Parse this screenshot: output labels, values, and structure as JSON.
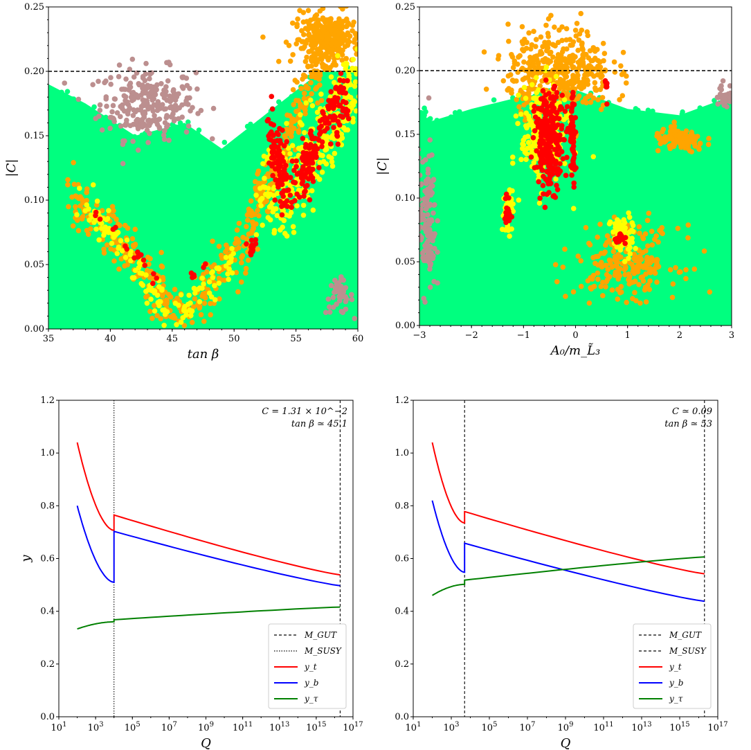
{
  "colors": {
    "green": "#00ff7f",
    "orange": "#ffa500",
    "yellow": "#ffff00",
    "red": "#ff0000",
    "rosybrown": "#bc8f8f",
    "yt": "#ff0000",
    "yb": "#0000ff",
    "ytau": "#008000"
  },
  "chart_data": [
    {
      "type": "scatter",
      "xlabel": "tan β",
      "ylabel": "|C|",
      "xlim": [
        35,
        60
      ],
      "ylim": [
        0.0,
        0.25
      ],
      "xticks": [
        "35",
        "40",
        "45",
        "50",
        "55",
        "60"
      ],
      "yticks": [
        "0.00",
        "0.05",
        "0.10",
        "0.15",
        "0.20",
        "0.25"
      ],
      "hline": 0.2,
      "grid": false,
      "regions": [
        {
          "color": "green",
          "desc": "background band",
          "polygon": [
            [
              35,
              0
            ],
            [
              60,
              0
            ],
            [
              60,
              0.2
            ],
            [
              57,
              0.2
            ],
            [
              53,
              0.17
            ],
            [
              49,
              0.14
            ],
            [
              46,
              0.16
            ],
            [
              42,
              0.15
            ],
            [
              38,
              0.175
            ],
            [
              35,
              0.19
            ]
          ]
        },
        {
          "color": "rosybrown",
          "cluster": {
            "x": 43,
            "y": 0.175,
            "sx": 3.5,
            "sy": 0.025,
            "n": 260
          }
        },
        {
          "color": "rosybrown",
          "cluster": {
            "x": 58.5,
            "y": 0.025,
            "sx": 1.0,
            "sy": 0.012,
            "n": 40
          }
        },
        {
          "color": "orange",
          "band": [
            [
              36.5,
              0.105
            ],
            [
              40,
              0.075
            ],
            [
              44,
              0.03
            ],
            [
              45,
              0.01
            ],
            [
              47,
              0.02
            ],
            [
              50,
              0.055
            ],
            [
              53,
              0.12
            ],
            [
              56,
              0.19
            ],
            [
              59,
              0.24
            ]
          ],
          "width": 0.018,
          "n": 520
        },
        {
          "color": "orange",
          "cluster": {
            "x": 57.5,
            "y": 0.225,
            "sx": 2.5,
            "sy": 0.018,
            "n": 260
          }
        },
        {
          "color": "yellow",
          "band": [
            [
              37.5,
              0.1
            ],
            [
              40,
              0.075
            ],
            [
              43,
              0.04
            ],
            [
              44.5,
              0.015
            ]
          ],
          "width": 0.01,
          "n": 90
        },
        {
          "color": "yellow",
          "band": [
            [
              45.5,
              0.01
            ],
            [
              48,
              0.035
            ],
            [
              50,
              0.055
            ]
          ],
          "width": 0.01,
          "n": 50
        },
        {
          "color": "yellow",
          "band": [
            [
              52,
              0.11
            ],
            [
              54,
              0.1
            ],
            [
              56,
              0.13
            ],
            [
              58,
              0.16
            ],
            [
              60,
              0.19
            ]
          ],
          "width": 0.03,
          "n": 340
        },
        {
          "color": "red",
          "band": [
            [
              38.5,
              0.095
            ],
            [
              41,
              0.07
            ],
            [
              43,
              0.05
            ],
            [
              44.5,
              0.02
            ]
          ],
          "width": 0.005,
          "n": 18
        },
        {
          "color": "red",
          "band": [
            [
              46.5,
              0.04
            ],
            [
              48,
              0.05
            ]
          ],
          "width": 0.004,
          "n": 6
        },
        {
          "color": "red",
          "cluster": {
            "x": 51.5,
            "y": 0.065,
            "sx": 0.4,
            "sy": 0.005,
            "n": 14
          }
        },
        {
          "color": "red",
          "band": [
            [
              53,
              0.15
            ],
            [
              54,
              0.11
            ],
            [
              55.5,
              0.12
            ],
            [
              57,
              0.15
            ],
            [
              59,
              0.185
            ]
          ],
          "width": 0.02,
          "n": 260
        }
      ]
    },
    {
      "type": "scatter",
      "xlabel": "A₀/m_L̃₃",
      "ylabel": "|C|",
      "xlim": [
        -3,
        3
      ],
      "ylim": [
        0.0,
        0.25
      ],
      "xticks": [
        "−3",
        "−2",
        "−1",
        "0",
        "1",
        "2",
        "3"
      ],
      "yticks": [
        "0.00",
        "0.05",
        "0.10",
        "0.15",
        "0.20",
        "0.25"
      ],
      "hline": 0.2,
      "grid": false,
      "regions": [
        {
          "color": "green",
          "desc": "background band",
          "polygon": [
            [
              -3,
              0
            ],
            [
              3,
              0
            ],
            [
              3,
              0.18
            ],
            [
              2,
              0.165
            ],
            [
              1,
              0.17
            ],
            [
              0,
              0.185
            ],
            [
              -1,
              0.18
            ],
            [
              -2,
              0.17
            ],
            [
              -2.8,
              0.16
            ],
            [
              -3,
              0.17
            ]
          ]
        },
        {
          "color": "rosybrown",
          "cluster": {
            "x": -2.85,
            "y": 0.08,
            "sx": 0.15,
            "sy": 0.05,
            "n": 120
          }
        },
        {
          "color": "rosybrown",
          "cluster": {
            "x": 2.85,
            "y": 0.18,
            "sx": 0.15,
            "sy": 0.01,
            "n": 30
          }
        },
        {
          "color": "orange",
          "cluster": {
            "x": -0.3,
            "y": 0.2,
            "sx": 0.9,
            "sy": 0.03,
            "n": 420
          }
        },
        {
          "color": "orange",
          "cluster": {
            "x": 2.0,
            "y": 0.145,
            "sx": 0.45,
            "sy": 0.008,
            "n": 120
          }
        },
        {
          "color": "orange",
          "cluster": {
            "x": 1.0,
            "y": 0.05,
            "sx": 0.9,
            "sy": 0.025,
            "n": 220
          }
        },
        {
          "color": "yellow",
          "cluster": {
            "x": -0.6,
            "y": 0.15,
            "sx": 0.4,
            "sy": 0.035,
            "n": 260
          }
        },
        {
          "color": "yellow",
          "cluster": {
            "x": 0.9,
            "y": 0.07,
            "sx": 0.2,
            "sy": 0.015,
            "n": 70
          }
        },
        {
          "color": "yellow",
          "cluster": {
            "x": -1.3,
            "y": 0.09,
            "sx": 0.1,
            "sy": 0.015,
            "n": 40
          }
        },
        {
          "color": "red",
          "cluster": {
            "x": -0.5,
            "y": 0.145,
            "sx": 0.25,
            "sy": 0.035,
            "n": 240
          }
        },
        {
          "color": "red",
          "cluster": {
            "x": -0.05,
            "y": 0.15,
            "sx": 0.05,
            "sy": 0.03,
            "n": 60
          }
        },
        {
          "color": "red",
          "cluster": {
            "x": -1.3,
            "y": 0.09,
            "sx": 0.06,
            "sy": 0.01,
            "n": 20
          }
        },
        {
          "color": "red",
          "cluster": {
            "x": 0.85,
            "y": 0.068,
            "sx": 0.1,
            "sy": 0.005,
            "n": 22
          }
        },
        {
          "color": "red",
          "cluster": {
            "x": 0.6,
            "y": 0.19,
            "sx": 0.03,
            "sy": 0.01,
            "n": 8
          }
        }
      ]
    },
    {
      "type": "line",
      "xlabel": "Q",
      "ylabel": "y",
      "xscale": "log",
      "xlim": [
        10,
        1e+17
      ],
      "ylim": [
        0.0,
        1.2
      ],
      "xticks": [
        "10^1",
        "10^3",
        "10^5",
        "10^7",
        "10^9",
        "10^11",
        "10^13",
        "10^15",
        "10^17"
      ],
      "yticks": [
        "0.0",
        "0.2",
        "0.4",
        "0.6",
        "0.8",
        "1.0",
        "1.2"
      ],
      "annotation": [
        "C = 1.31 × 10^−2",
        "tan β ≃ 45.1"
      ],
      "legend_position": "lower-right",
      "vlines": [
        {
          "name": "M_GUT",
          "x": 2e+16,
          "style": "dashed"
        },
        {
          "name": "M_SUSY",
          "x": 10000.0,
          "style": "dotted"
        }
      ],
      "series": [
        {
          "name": "y_t",
          "color": "yt",
          "low": {
            "x": [
              100,
              10000.0
            ],
            "y": [
              1.04,
              0.707
            ]
          },
          "high": {
            "x": [
              10000.0,
              2e+16
            ],
            "y": [
              0.765,
              0.538
            ]
          }
        },
        {
          "name": "y_b",
          "color": "yb",
          "low": {
            "x": [
              100,
              10000.0
            ],
            "y": [
              0.8,
              0.51
            ]
          },
          "high": {
            "x": [
              10000.0,
              2e+16
            ],
            "y": [
              0.703,
              0.497
            ]
          }
        },
        {
          "name": "y_τ",
          "color": "ytau",
          "low": {
            "x": [
              100,
              10000.0
            ],
            "y": [
              0.333,
              0.36
            ]
          },
          "high": {
            "x": [
              10000.0,
              2e+16
            ],
            "y": [
              0.368,
              0.416
            ]
          }
        }
      ]
    },
    {
      "type": "line",
      "xlabel": "Q",
      "ylabel": "",
      "xscale": "log",
      "xlim": [
        10,
        1e+17
      ],
      "ylim": [
        0.0,
        1.2
      ],
      "xticks": [
        "10^1",
        "10^3",
        "10^5",
        "10^7",
        "10^9",
        "10^11",
        "10^13",
        "10^15",
        "10^17"
      ],
      "yticks": [
        "0.0",
        "0.2",
        "0.4",
        "0.6",
        "0.8",
        "1.0",
        "1.2"
      ],
      "annotation": [
        "C ≃ 0.09",
        "tan β ≃ 53"
      ],
      "legend_position": "lower-right",
      "vlines": [
        {
          "name": "M_GUT",
          "x": 2e+16,
          "style": "dashed"
        },
        {
          "name": "M_SUSY",
          "x": 5000.0,
          "style": "dashed"
        }
      ],
      "series": [
        {
          "name": "y_t",
          "color": "yt",
          "low": {
            "x": [
              100,
              5000.0
            ],
            "y": [
              1.04,
              0.735
            ]
          },
          "high": {
            "x": [
              5000.0,
              2e+16
            ],
            "y": [
              0.778,
              0.542
            ]
          }
        },
        {
          "name": "y_b",
          "color": "yb",
          "low": {
            "x": [
              100,
              5000.0
            ],
            "y": [
              0.82,
              0.548
            ]
          },
          "high": {
            "x": [
              5000.0,
              2e+16
            ],
            "y": [
              0.658,
              0.438
            ]
          }
        },
        {
          "name": "y_τ",
          "color": "ytau",
          "low": {
            "x": [
              100,
              5000.0
            ],
            "y": [
              0.46,
              0.502
            ]
          },
          "high": {
            "x": [
              5000.0,
              2e+16
            ],
            "y": [
              0.518,
              0.606
            ]
          }
        }
      ]
    }
  ]
}
